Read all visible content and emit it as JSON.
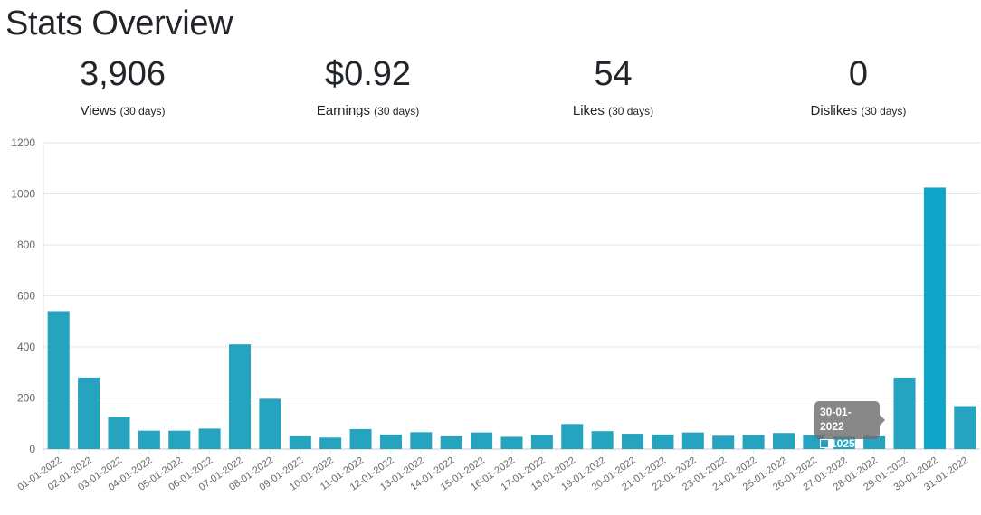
{
  "header": {
    "title": "Stats Overview"
  },
  "stats": [
    {
      "value": "3,906",
      "label": "Views",
      "period": "(30 days)"
    },
    {
      "value": "$0.92",
      "label": "Earnings",
      "period": "(30 days)"
    },
    {
      "value": "54",
      "label": "Likes",
      "period": "(30 days)"
    },
    {
      "value": "0",
      "label": "Dislikes",
      "period": "(30 days)"
    }
  ],
  "colors": {
    "bar": "#26a3bf",
    "bar_highlight": "#0fa4c8",
    "grid": "#e6e6e6",
    "axis_text": "#666666"
  },
  "tooltip": {
    "title": "30-01-2022",
    "value": "1025"
  },
  "chart_data": {
    "type": "bar",
    "categories": [
      "01-01-2022",
      "02-01-2022",
      "03-01-2022",
      "04-01-2022",
      "05-01-2022",
      "06-01-2022",
      "07-01-2022",
      "08-01-2022",
      "09-01-2022",
      "10-01-2022",
      "11-01-2022",
      "12-01-2022",
      "13-01-2022",
      "14-01-2022",
      "15-01-2022",
      "16-01-2022",
      "17-01-2022",
      "18-01-2022",
      "19-01-2022",
      "20-01-2022",
      "21-01-2022",
      "22-01-2022",
      "23-01-2022",
      "24-01-2022",
      "25-01-2022",
      "26-01-2022",
      "27-01-2022",
      "28-01-2022",
      "29-01-2022",
      "30-01-2022",
      "31-01-2022"
    ],
    "values": [
      540,
      280,
      125,
      72,
      72,
      80,
      410,
      197,
      50,
      45,
      78,
      57,
      66,
      50,
      65,
      48,
      55,
      98,
      70,
      60,
      57,
      65,
      52,
      55,
      63,
      55,
      48,
      50,
      280,
      1025,
      168
    ],
    "ylim": [
      0,
      1200
    ],
    "yticks": [
      0,
      200,
      400,
      600,
      800,
      1000,
      1200
    ],
    "grid": true,
    "highlighted_index": 29
  }
}
